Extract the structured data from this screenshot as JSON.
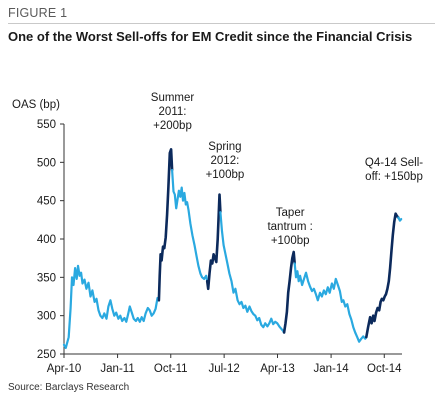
{
  "figure": {
    "label": "FIGURE 1",
    "title": "One of the Worst Sell-offs for EM Credit since the Financial Crisis",
    "source": "Source: Barclays Research"
  },
  "colors": {
    "base_line": "#2aa9e0",
    "selloff_line": "#0c2a5c",
    "axis": "#333333"
  },
  "chart_data": {
    "type": "line",
    "ylabel": "OAS (bp)",
    "ylim": [
      250,
      550
    ],
    "yticks": [
      250,
      300,
      350,
      400,
      450,
      500,
      550
    ],
    "x_range": [
      "2010-04-01",
      "2014-12-31"
    ],
    "xticks": [
      "Apr-10",
      "Jan-11",
      "Oct-11",
      "Jul-12",
      "Apr-13",
      "Jan-14",
      "Oct-14"
    ],
    "xtick_dates": [
      "2010-04-01",
      "2011-01-01",
      "2011-10-01",
      "2012-07-01",
      "2013-04-01",
      "2014-01-01",
      "2014-10-01"
    ],
    "series": [
      {
        "color": "#2aa9e0",
        "points": [
          [
            "2010-04-01",
            262
          ],
          [
            "2010-04-10",
            258
          ],
          [
            "2010-04-25",
            272
          ],
          [
            "2010-05-05",
            310
          ],
          [
            "2010-05-12",
            350
          ],
          [
            "2010-05-20",
            340
          ],
          [
            "2010-05-28",
            362
          ],
          [
            "2010-06-05",
            348
          ],
          [
            "2010-06-12",
            365
          ],
          [
            "2010-06-20",
            352
          ],
          [
            "2010-06-28",
            356
          ],
          [
            "2010-07-05",
            342
          ],
          [
            "2010-07-15",
            347
          ],
          [
            "2010-07-25",
            335
          ],
          [
            "2010-08-05",
            343
          ],
          [
            "2010-08-15",
            325
          ],
          [
            "2010-08-25",
            333
          ],
          [
            "2010-09-05",
            318
          ],
          [
            "2010-09-15",
            322
          ],
          [
            "2010-09-25",
            307
          ],
          [
            "2010-10-05",
            300
          ],
          [
            "2010-10-15",
            297
          ],
          [
            "2010-10-25",
            303
          ],
          [
            "2010-11-05",
            296
          ],
          [
            "2010-11-15",
            312
          ],
          [
            "2010-11-25",
            320
          ],
          [
            "2010-12-05",
            309
          ],
          [
            "2010-12-15",
            300
          ],
          [
            "2010-12-25",
            304
          ],
          [
            "2011-01-05",
            296
          ],
          [
            "2011-01-15",
            300
          ],
          [
            "2011-01-25",
            293
          ],
          [
            "2011-02-05",
            297
          ],
          [
            "2011-02-15",
            292
          ],
          [
            "2011-02-25",
            303
          ],
          [
            "2011-03-05",
            312
          ],
          [
            "2011-03-15",
            304
          ],
          [
            "2011-03-25",
            296
          ],
          [
            "2011-04-05",
            293
          ],
          [
            "2011-04-15",
            297
          ],
          [
            "2011-04-25",
            292
          ],
          [
            "2011-05-05",
            298
          ],
          [
            "2011-05-15",
            293
          ],
          [
            "2011-05-25",
            303
          ],
          [
            "2011-06-05",
            310
          ],
          [
            "2011-06-15",
            307
          ],
          [
            "2011-06-25",
            300
          ],
          [
            "2011-07-05",
            303
          ],
          [
            "2011-07-15",
            309
          ],
          [
            "2011-07-25",
            323
          ],
          [
            "2011-08-01",
            320
          ]
        ]
      },
      {
        "color": "#0c2a5c",
        "points": [
          [
            "2011-08-01",
            320
          ],
          [
            "2011-08-05",
            352
          ],
          [
            "2011-08-10",
            380
          ],
          [
            "2011-08-15",
            372
          ],
          [
            "2011-08-22",
            390
          ],
          [
            "2011-08-29",
            388
          ],
          [
            "2011-09-05",
            402
          ],
          [
            "2011-09-12",
            432
          ],
          [
            "2011-09-19",
            468
          ],
          [
            "2011-09-26",
            512
          ],
          [
            "2011-10-03",
            517
          ],
          [
            "2011-10-08",
            490
          ]
        ]
      },
      {
        "color": "#2aa9e0",
        "points": [
          [
            "2011-10-08",
            490
          ],
          [
            "2011-10-15",
            462
          ],
          [
            "2011-10-22",
            458
          ],
          [
            "2011-10-29",
            440
          ],
          [
            "2011-11-05",
            452
          ],
          [
            "2011-11-12",
            463
          ],
          [
            "2011-11-19",
            455
          ],
          [
            "2011-11-26",
            467
          ],
          [
            "2011-12-03",
            450
          ],
          [
            "2011-12-10",
            460
          ],
          [
            "2011-12-17",
            445
          ],
          [
            "2011-12-24",
            448
          ],
          [
            "2011-12-31",
            438
          ],
          [
            "2012-01-10",
            420
          ],
          [
            "2012-01-20",
            405
          ],
          [
            "2012-01-31",
            392
          ],
          [
            "2012-02-10",
            378
          ],
          [
            "2012-02-20",
            365
          ],
          [
            "2012-03-01",
            355
          ],
          [
            "2012-03-10",
            350
          ],
          [
            "2012-03-20",
            348
          ],
          [
            "2012-03-31",
            352
          ],
          [
            "2012-04-05",
            345
          ]
        ]
      },
      {
        "color": "#0c2a5c",
        "points": [
          [
            "2012-04-05",
            345
          ],
          [
            "2012-04-10",
            335
          ],
          [
            "2012-04-17",
            355
          ],
          [
            "2012-04-24",
            372
          ],
          [
            "2012-05-01",
            368
          ],
          [
            "2012-05-08",
            380
          ],
          [
            "2012-05-15",
            375
          ],
          [
            "2012-05-22",
            370
          ],
          [
            "2012-05-29",
            400
          ],
          [
            "2012-06-03",
            432
          ],
          [
            "2012-06-07",
            458
          ],
          [
            "2012-06-12",
            435
          ]
        ]
      },
      {
        "color": "#2aa9e0",
        "points": [
          [
            "2012-06-12",
            435
          ],
          [
            "2012-06-20",
            410
          ],
          [
            "2012-06-28",
            392
          ],
          [
            "2012-07-08",
            380
          ],
          [
            "2012-07-18",
            368
          ],
          [
            "2012-07-28",
            355
          ],
          [
            "2012-08-08",
            345
          ],
          [
            "2012-08-18",
            330
          ],
          [
            "2012-08-28",
            335
          ],
          [
            "2012-09-08",
            320
          ],
          [
            "2012-09-18",
            315
          ],
          [
            "2012-09-28",
            318
          ],
          [
            "2012-10-08",
            310
          ],
          [
            "2012-10-18",
            313
          ],
          [
            "2012-10-28",
            305
          ],
          [
            "2012-11-08",
            312
          ],
          [
            "2012-11-18",
            306
          ],
          [
            "2012-11-28",
            302
          ],
          [
            "2012-12-08",
            300
          ],
          [
            "2012-12-18",
            294
          ],
          [
            "2012-12-28",
            297
          ],
          [
            "2013-01-08",
            288
          ],
          [
            "2013-01-18",
            285
          ],
          [
            "2013-01-28",
            290
          ],
          [
            "2013-02-08",
            286
          ],
          [
            "2013-02-18",
            290
          ],
          [
            "2013-02-28",
            296
          ],
          [
            "2013-03-10",
            289
          ],
          [
            "2013-03-20",
            292
          ],
          [
            "2013-03-31",
            290
          ],
          [
            "2013-04-10",
            286
          ],
          [
            "2013-04-20",
            283
          ],
          [
            "2013-04-30",
            280
          ],
          [
            "2013-05-05",
            278
          ]
        ]
      },
      {
        "color": "#0c2a5c",
        "points": [
          [
            "2013-05-05",
            278
          ],
          [
            "2013-05-12",
            290
          ],
          [
            "2013-05-19",
            305
          ],
          [
            "2013-05-26",
            330
          ],
          [
            "2013-06-02",
            345
          ],
          [
            "2013-06-09",
            362
          ],
          [
            "2013-06-16",
            375
          ],
          [
            "2013-06-23",
            383
          ],
          [
            "2013-06-28",
            368
          ]
        ]
      },
      {
        "color": "#2aa9e0",
        "points": [
          [
            "2013-06-28",
            368
          ],
          [
            "2013-07-05",
            350
          ],
          [
            "2013-07-12",
            358
          ],
          [
            "2013-07-19",
            345
          ],
          [
            "2013-07-26",
            352
          ],
          [
            "2013-08-05",
            340
          ],
          [
            "2013-08-15",
            348
          ],
          [
            "2013-08-25",
            356
          ],
          [
            "2013-09-05",
            345
          ],
          [
            "2013-09-15",
            338
          ],
          [
            "2013-09-25",
            332
          ],
          [
            "2013-10-05",
            335
          ],
          [
            "2013-10-15",
            328
          ],
          [
            "2013-10-25",
            320
          ],
          [
            "2013-11-05",
            330
          ],
          [
            "2013-11-15",
            325
          ],
          [
            "2013-11-25",
            333
          ],
          [
            "2013-12-05",
            328
          ],
          [
            "2013-12-15",
            337
          ],
          [
            "2013-12-25",
            330
          ],
          [
            "2014-01-05",
            342
          ],
          [
            "2014-01-15",
            335
          ],
          [
            "2014-01-25",
            348
          ],
          [
            "2014-02-05",
            340
          ],
          [
            "2014-02-15",
            332
          ],
          [
            "2014-02-25",
            318
          ],
          [
            "2014-03-05",
            320
          ],
          [
            "2014-03-15",
            312
          ],
          [
            "2014-03-25",
            315
          ],
          [
            "2014-04-05",
            302
          ],
          [
            "2014-04-15",
            295
          ],
          [
            "2014-04-25",
            285
          ],
          [
            "2014-05-05",
            278
          ],
          [
            "2014-05-15",
            272
          ],
          [
            "2014-05-25",
            266
          ],
          [
            "2014-06-05",
            270
          ],
          [
            "2014-06-15",
            273
          ],
          [
            "2014-06-25",
            270
          ],
          [
            "2014-07-01",
            272
          ]
        ]
      },
      {
        "color": "#0c2a5c",
        "points": [
          [
            "2014-07-01",
            272
          ],
          [
            "2014-07-10",
            285
          ],
          [
            "2014-07-20",
            298
          ],
          [
            "2014-07-28",
            290
          ],
          [
            "2014-08-05",
            300
          ],
          [
            "2014-08-12",
            293
          ],
          [
            "2014-08-20",
            304
          ],
          [
            "2014-08-28",
            310
          ],
          [
            "2014-09-05",
            307
          ],
          [
            "2014-09-12",
            318
          ],
          [
            "2014-09-19",
            322
          ],
          [
            "2014-09-26",
            320
          ],
          [
            "2014-10-03",
            325
          ],
          [
            "2014-10-10",
            328
          ],
          [
            "2014-10-17",
            335
          ],
          [
            "2014-10-24",
            345
          ],
          [
            "2014-10-31",
            362
          ],
          [
            "2014-11-07",
            385
          ],
          [
            "2014-11-14",
            405
          ],
          [
            "2014-11-21",
            422
          ],
          [
            "2014-11-28",
            433
          ],
          [
            "2014-12-05",
            430
          ],
          [
            "2014-12-12",
            428
          ]
        ]
      },
      {
        "color": "#2aa9e0",
        "points": [
          [
            "2014-12-12",
            428
          ],
          [
            "2014-12-20",
            424
          ],
          [
            "2014-12-27",
            426
          ]
        ]
      }
    ],
    "annotations": [
      {
        "lines": [
          "Summer",
          "2011:",
          "+200bp"
        ],
        "anchor": "2011-10-10"
      },
      {
        "lines": [
          "Spring",
          "2012:",
          "+100bp"
        ],
        "anchor": "2012-07-05"
      },
      {
        "lines": [
          "Taper",
          "tantrum :",
          "+100bp"
        ],
        "anchor": "2013-06-05"
      },
      {
        "lines": [
          "Q4-14 Sell-",
          "off: +150bp"
        ],
        "anchor": "2014-11-20"
      }
    ]
  }
}
